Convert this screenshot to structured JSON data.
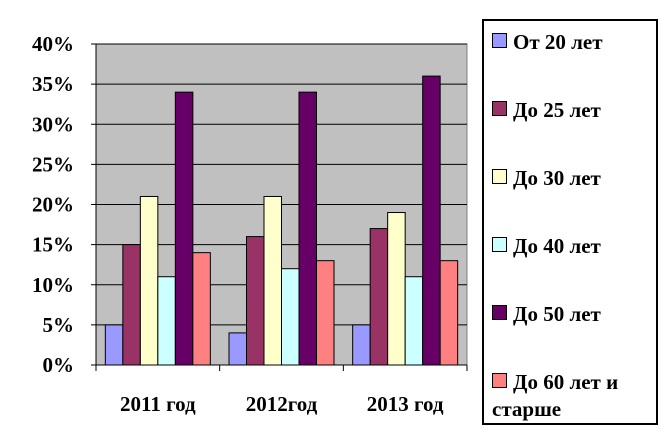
{
  "chart_data": {
    "type": "bar",
    "categories": [
      "2011 год",
      "2012год",
      "2013 год"
    ],
    "y_ticks": [
      "0%",
      "5%",
      "10%",
      "15%",
      "20%",
      "25%",
      "30%",
      "35%",
      "40%"
    ],
    "ylim": [
      0,
      40
    ],
    "grid": true,
    "legend_position": "right",
    "series": [
      {
        "name": "От 20 лет",
        "color": "#9999ff",
        "values": [
          5,
          4,
          5
        ]
      },
      {
        "name": "До 25 лет",
        "color": "#993366",
        "values": [
          15,
          16,
          17
        ]
      },
      {
        "name": "До 30 лет",
        "color": "#ffffcc",
        "values": [
          21,
          21,
          19
        ]
      },
      {
        "name": "До 40 лет",
        "color": "#ccffff",
        "values": [
          11,
          12,
          11
        ]
      },
      {
        "name": "До 50 лет",
        "color": "#660066",
        "values": [
          34,
          34,
          36
        ]
      },
      {
        "name": "До 60 лет и старше",
        "color": "#ff8080",
        "values": [
          14,
          13,
          13
        ]
      }
    ],
    "plot_background": "#c0c0c0"
  },
  "legend": {
    "items": [
      "От 20 лет",
      "До 25 лет",
      "До 30 лет",
      "До 40 лет",
      "До 50 лет",
      "До 60 лет и",
      "старше"
    ]
  }
}
